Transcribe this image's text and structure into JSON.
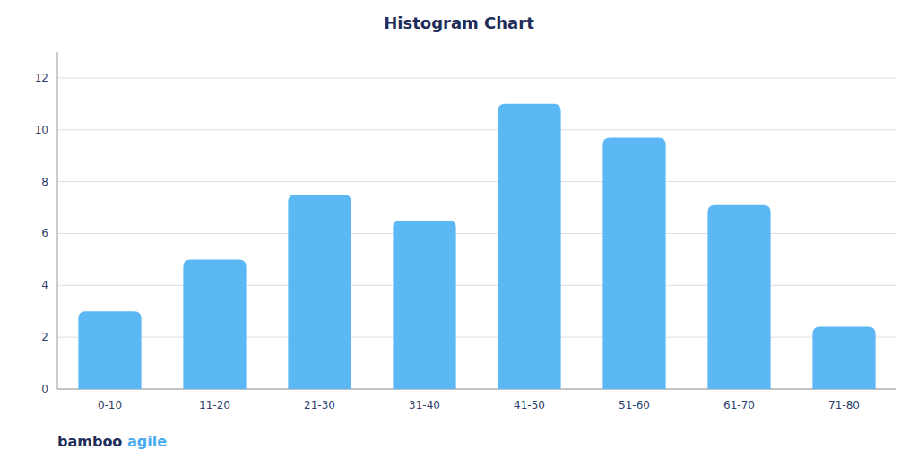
{
  "chart_data": {
    "type": "bar",
    "title": "Histogram Chart",
    "categories": [
      "0-10",
      "11-20",
      "21-30",
      "31-40",
      "41-50",
      "51-60",
      "61-70",
      "71-80"
    ],
    "values": [
      3.0,
      5.0,
      7.5,
      6.5,
      11.0,
      9.7,
      7.1,
      2.4
    ],
    "color": "#5BB8F5",
    "ylim": [
      0,
      13
    ],
    "yticks": [
      0,
      2,
      4,
      6,
      8,
      10,
      12
    ],
    "grid": true,
    "annotations": [
      "bamboo ",
      "agile"
    ]
  }
}
